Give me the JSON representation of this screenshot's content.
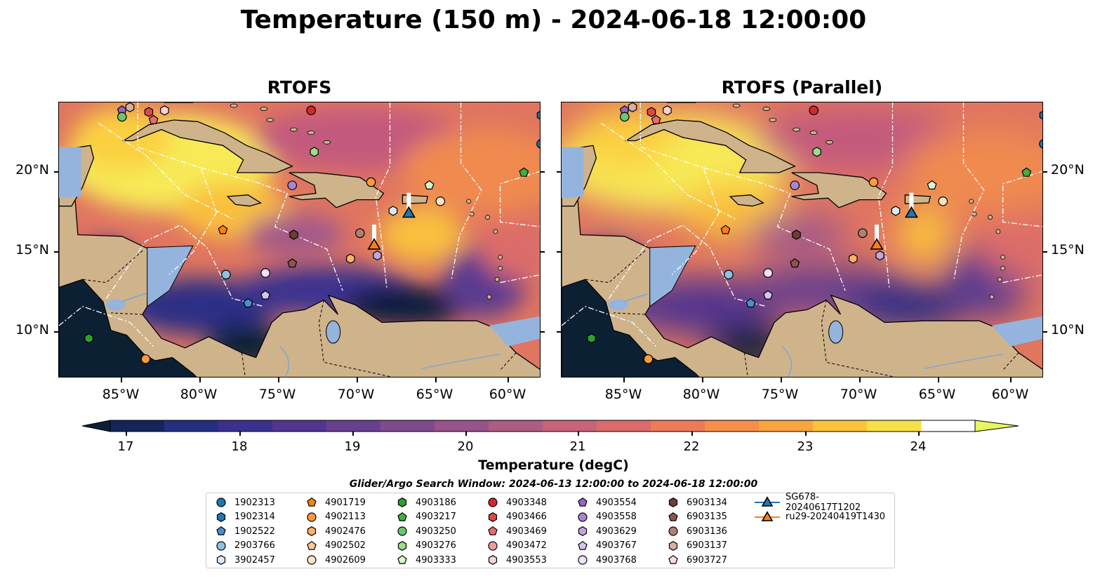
{
  "title": "Temperature (150 m) - 2024-06-18 12:00:00",
  "panels": [
    {
      "title": "RTOFS"
    },
    {
      "title": "RTOFS (Parallel)"
    }
  ],
  "axes": {
    "lat_labels": [
      "20°N",
      "15°N",
      "10°N"
    ],
    "lon_labels": [
      "85°W",
      "80°W",
      "75°W",
      "70°W",
      "65°W",
      "60°W"
    ]
  },
  "colorbar": {
    "label": "Temperature (degC)",
    "ticks": [
      "17",
      "18",
      "19",
      "20",
      "21",
      "22",
      "23",
      "24"
    ],
    "colors": [
      "#0b2033",
      "#14245a",
      "#252f80",
      "#3b2f8f",
      "#52358f",
      "#69408e",
      "#7f4a8c",
      "#97538a",
      "#ad5c84",
      "#c5647a",
      "#db6c6b",
      "#ed7a58",
      "#f68f49",
      "#f9a53f",
      "#fbc23b",
      "#f6e04a",
      "#e6f65c"
    ]
  },
  "search_window": "Glider/Argo Search Window: 2024-06-13 12:00:00 to 2024-06-18 12:00:00",
  "legend": [
    {
      "label": "1902313",
      "color": "#1f77b4",
      "marker": "circle"
    },
    {
      "label": "1902314",
      "color": "#1f77b4",
      "marker": "hexagon"
    },
    {
      "label": "1902522",
      "color": "#4a90c9",
      "marker": "pentagon"
    },
    {
      "label": "2903766",
      "color": "#8ec1e6",
      "marker": "circle"
    },
    {
      "label": "3902457",
      "color": "#dceaf7",
      "marker": "hexagon"
    },
    {
      "label": "4901719",
      "color": "#ff7f0e",
      "marker": "pentagon"
    },
    {
      "label": "4902113",
      "color": "#ff9a3c",
      "marker": "circle"
    },
    {
      "label": "4902476",
      "color": "#ffb266",
      "marker": "hexagon"
    },
    {
      "label": "4902502",
      "color": "#ffcb94",
      "marker": "pentagon"
    },
    {
      "label": "4902609",
      "color": "#ffe3c4",
      "marker": "circle"
    },
    {
      "label": "4903186",
      "color": "#2ca02c",
      "marker": "hexagon"
    },
    {
      "label": "4903217",
      "color": "#3eb03e",
      "marker": "pentagon"
    },
    {
      "label": "4903250",
      "color": "#67c967",
      "marker": "circle"
    },
    {
      "label": "4903276",
      "color": "#98df8a",
      "marker": "hexagon"
    },
    {
      "label": "4903333",
      "color": "#d6f5cf",
      "marker": "pentagon"
    },
    {
      "label": "4903348",
      "color": "#d62728",
      "marker": "circle"
    },
    {
      "label": "4903466",
      "color": "#e04848",
      "marker": "hexagon"
    },
    {
      "label": "4903469",
      "color": "#ea6b6b",
      "marker": "pentagon"
    },
    {
      "label": "4903472",
      "color": "#f29a9a",
      "marker": "circle"
    },
    {
      "label": "4903553",
      "color": "#fbd1d1",
      "marker": "hexagon"
    },
    {
      "label": "4903554",
      "color": "#9467bd",
      "marker": "pentagon"
    },
    {
      "label": "4903558",
      "color": "#a985cf",
      "marker": "circle"
    },
    {
      "label": "4903629",
      "color": "#c0a6df",
      "marker": "hexagon"
    },
    {
      "label": "4903767",
      "color": "#d6c4ed",
      "marker": "pentagon"
    },
    {
      "label": "4903768",
      "color": "#eee3f8",
      "marker": "circle"
    },
    {
      "label": "6903134",
      "color": "#6b3f33",
      "marker": "hexagon"
    },
    {
      "label": "6903135",
      "color": "#8c564b",
      "marker": "pentagon"
    },
    {
      "label": "6903136",
      "color": "#b07f73",
      "marker": "circle"
    },
    {
      "label": "6903137",
      "color": "#d9aea3",
      "marker": "hexagon"
    },
    {
      "label": "6903727",
      "color": "#f8ddd6",
      "marker": "pentagon"
    },
    {
      "label": "SG678-20240617T1202",
      "color": "#1f77b4",
      "marker": "triangle"
    },
    {
      "label": "ru29-20240419T1430",
      "color": "#ff7f0e",
      "marker": "triangle"
    }
  ],
  "floats": [
    {
      "lon": -85,
      "lat": 23.8,
      "color": "#9467bd",
      "marker": "pentagon"
    },
    {
      "lon": -84.5,
      "lat": 24.0,
      "color": "#d9aea3",
      "marker": "hexagon"
    },
    {
      "lon": -85,
      "lat": 23.4,
      "color": "#67c967",
      "marker": "circle"
    },
    {
      "lon": -83.3,
      "lat": 23.7,
      "color": "#e04848",
      "marker": "hexagon"
    },
    {
      "lon": -82.3,
      "lat": 23.8,
      "color": "#fbd1d1",
      "marker": "hexagon"
    },
    {
      "lon": -83,
      "lat": 23.2,
      "color": "#ea6b6b",
      "marker": "pentagon"
    },
    {
      "lon": -73.0,
      "lat": 23.8,
      "color": "#d62728",
      "marker": "circle"
    },
    {
      "lon": -72.8,
      "lat": 21.2,
      "color": "#98df8a",
      "marker": "hexagon"
    },
    {
      "lon": -58.4,
      "lat": 23.5,
      "color": "#1f77b4",
      "marker": "hexagon"
    },
    {
      "lon": -58.4,
      "lat": 21.7,
      "color": "#1f77b4",
      "marker": "circle"
    },
    {
      "lon": -59.5,
      "lat": 19.9,
      "color": "#3eb03e",
      "marker": "pentagon"
    },
    {
      "lon": -74.2,
      "lat": 19.1,
      "color": "#a985cf",
      "marker": "circle"
    },
    {
      "lon": -69.2,
      "lat": 19.3,
      "color": "#ff9a3c",
      "marker": "circle"
    },
    {
      "lon": -67.8,
      "lat": 17.5,
      "color": "#dceaf7",
      "marker": "hexagon"
    },
    {
      "lon": -65.5,
      "lat": 19.1,
      "color": "#d6f5cf",
      "marker": "pentagon"
    },
    {
      "lon": -64.8,
      "lat": 18.1,
      "color": "#ffe3c4",
      "marker": "circle"
    },
    {
      "lon": -78.6,
      "lat": 16.3,
      "color": "#ff7f0e",
      "marker": "pentagon"
    },
    {
      "lon": -74.1,
      "lat": 16.0,
      "color": "#6b3f33",
      "marker": "hexagon"
    },
    {
      "lon": -69.9,
      "lat": 16.1,
      "color": "#b07f73",
      "marker": "circle"
    },
    {
      "lon": -70.5,
      "lat": 14.5,
      "color": "#ffb266",
      "marker": "hexagon"
    },
    {
      "lon": -68.8,
      "lat": 14.7,
      "color": "#c0a6df",
      "marker": "hexagon"
    },
    {
      "lon": -74.2,
      "lat": 14.2,
      "color": "#8c564b",
      "marker": "pentagon"
    },
    {
      "lon": -78.4,
      "lat": 13.5,
      "color": "#8ec1e6",
      "marker": "circle"
    },
    {
      "lon": -75.9,
      "lat": 13.6,
      "color": "#eee3f8",
      "marker": "circle"
    },
    {
      "lon": -75.9,
      "lat": 12.2,
      "color": "#d6c4ed",
      "marker": "pentagon"
    },
    {
      "lon": -77.0,
      "lat": 11.7,
      "color": "#4a90c9",
      "marker": "pentagon"
    },
    {
      "lon": -87.1,
      "lat": 9.5,
      "color": "#2ca02c",
      "marker": "hexagon"
    },
    {
      "lon": -83.5,
      "lat": 8.2,
      "color": "#ff9a3c",
      "marker": "circle"
    }
  ],
  "gliders": [
    {
      "lon": -66.8,
      "lat": 17.4,
      "color": "#1f77b4"
    },
    {
      "lon": -69.0,
      "lat": 15.4,
      "color": "#ff7f0e"
    }
  ]
}
